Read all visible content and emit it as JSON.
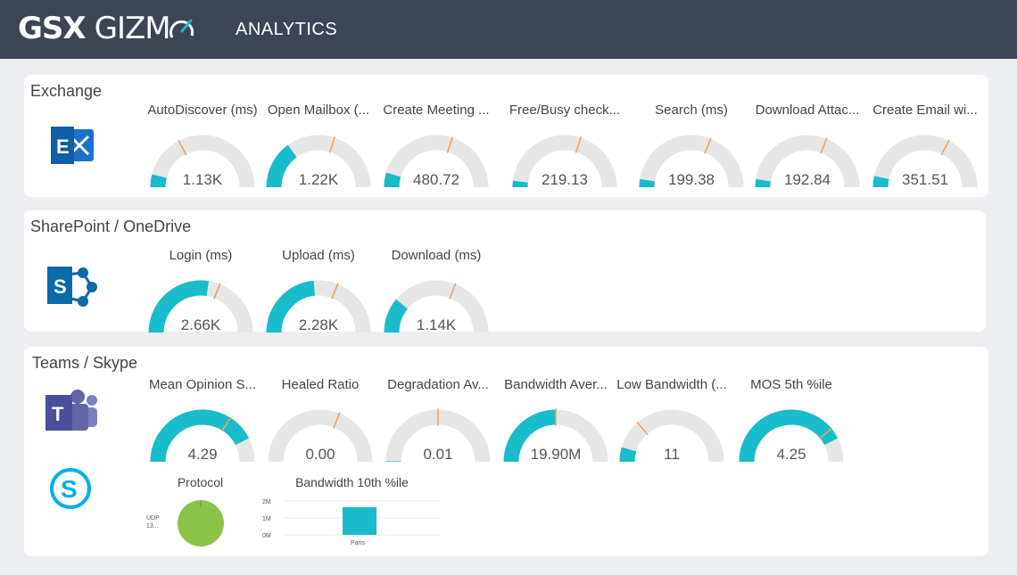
{
  "header": {
    "brand_bold": "GSX",
    "brand_thin": "GIZM",
    "subtitle": "ANALYTICS"
  },
  "colors": {
    "header_bg": "#3c4456",
    "gauge_fill": "#19bccb",
    "gauge_track": "#e6e6e6",
    "target_marker": "#f0a35c",
    "pie": "#8bc34a"
  },
  "sections": {
    "exchange": {
      "title": "Exchange",
      "icon": "exchange-icon",
      "gauges": [
        {
          "label": "AutoDiscover (ms)",
          "value": "1.13K",
          "fill": 0.08,
          "target": 0.35
        },
        {
          "label": "Open Mailbox (...",
          "value": "1.22K",
          "fill": 0.3,
          "target": 0.6
        },
        {
          "label": "Create Meeting ...",
          "value": "480.72",
          "fill": 0.09,
          "target": 0.6
        },
        {
          "label": "Free/Busy check...",
          "value": "219.13",
          "fill": 0.04,
          "target": 0.6
        },
        {
          "label": "Search (ms)",
          "value": "199.38",
          "fill": 0.05,
          "target": 0.62
        },
        {
          "label": "Download Attac...",
          "value": "192.84",
          "fill": 0.05,
          "target": 0.62
        },
        {
          "label": "Create Email wi...",
          "value": "351.51",
          "fill": 0.07,
          "target": 0.65
        }
      ]
    },
    "sharepoint": {
      "title": "SharePoint / OneDrive",
      "icon": "sharepoint-icon",
      "gauges": [
        {
          "label": "Login (ms)",
          "value": "2.66K",
          "fill": 0.55,
          "target": 0.62
        },
        {
          "label": "Upload (ms)",
          "value": "2.28K",
          "fill": 0.47,
          "target": 0.62
        },
        {
          "label": "Download (ms)",
          "value": "1.14K",
          "fill": 0.22,
          "target": 0.62
        }
      ]
    },
    "teams": {
      "title": "Teams / Skype",
      "icons": [
        "teams-icon",
        "skype-icon"
      ],
      "gauges": [
        {
          "label": "Mean Opinion S...",
          "value": "4.29",
          "fill": 0.85,
          "target": 0.68
        },
        {
          "label": "Healed Ratio",
          "value": "0.00",
          "fill": 0.0,
          "target": 0.62
        },
        {
          "label": "Degradation Av...",
          "value": "0.01",
          "fill": 0.003,
          "target": 0.5
        },
        {
          "label": "Bandwidth Aver...",
          "value": "19.90M",
          "fill": 0.5,
          "target": 0.5
        },
        {
          "label": "Low Bandwidth (...",
          "value": "11",
          "fill": 0.09,
          "target": 0.27
        },
        {
          "label": "MOS 5th %ile",
          "value": "4.25",
          "fill": 0.85,
          "target": 0.78
        }
      ],
      "protocol": {
        "title": "Protocol",
        "slice_label_1": "UDP",
        "slice_label_2": "13..."
      },
      "bandwidth_chart": {
        "title": "Bandwidth 10th %ile",
        "y_ticks": [
          "2M",
          "1M",
          "0M"
        ],
        "category": "Paris"
      }
    }
  },
  "chart_data": [
    {
      "type": "pie",
      "title": "Protocol",
      "slices": [
        {
          "label": "UDP",
          "value": 13
        }
      ]
    },
    {
      "type": "bar",
      "title": "Bandwidth 10th %ile",
      "categories": [
        "Paris"
      ],
      "values": [
        1600000
      ],
      "ylim": [
        0,
        2000000
      ],
      "y_ticks": [
        "2M",
        "1M",
        "0M"
      ]
    }
  ]
}
